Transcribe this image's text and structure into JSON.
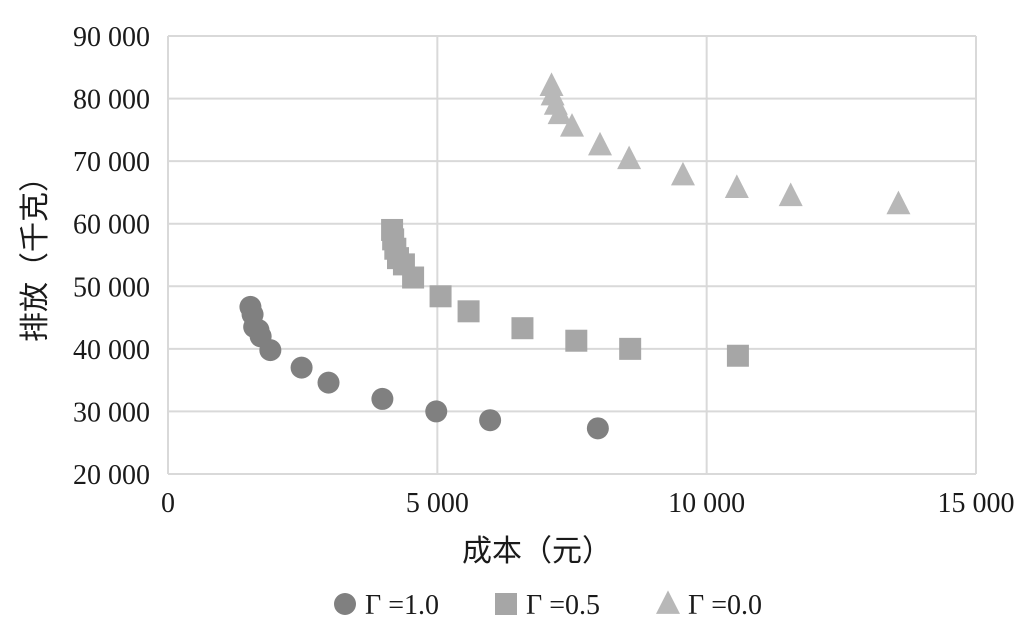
{
  "chart_data": {
    "type": "scatter",
    "title": "",
    "xlabel": "成本（元）",
    "ylabel": "排放（千克）",
    "xlim": [
      0,
      15000
    ],
    "ylim": [
      20000,
      90000
    ],
    "x_ticks": [
      0,
      5000,
      10000,
      15000
    ],
    "x_tick_labels": [
      "0",
      "5 000",
      "10 000",
      "15 000"
    ],
    "y_ticks": [
      20000,
      30000,
      40000,
      50000,
      60000,
      70000,
      80000,
      90000
    ],
    "y_tick_labels": [
      "20 000",
      "30 000",
      "40 000",
      "50 000",
      "60 000",
      "70 000",
      "80 000",
      "90 000"
    ],
    "grid": true,
    "legend_position": "bottom",
    "series": [
      {
        "name": "Γ =1.0",
        "marker": "circle",
        "color": "#808080",
        "points": [
          [
            1530,
            46700
          ],
          [
            1570,
            45500
          ],
          [
            1600,
            43500
          ],
          [
            1680,
            43000
          ],
          [
            1720,
            42000
          ],
          [
            1900,
            39800
          ],
          [
            2480,
            37000
          ],
          [
            2980,
            34600
          ],
          [
            3980,
            32000
          ],
          [
            4980,
            30000
          ],
          [
            5980,
            28600
          ],
          [
            7980,
            27300
          ]
        ]
      },
      {
        "name": "Γ =0.5",
        "marker": "square",
        "color": "#a6a6a6",
        "points": [
          [
            4160,
            59000
          ],
          [
            4180,
            57500
          ],
          [
            4220,
            56000
          ],
          [
            4270,
            54500
          ],
          [
            4380,
            53500
          ],
          [
            4550,
            51400
          ],
          [
            5060,
            48400
          ],
          [
            5580,
            46000
          ],
          [
            6580,
            43300
          ],
          [
            7580,
            41300
          ],
          [
            8580,
            40000
          ],
          [
            10580,
            38900
          ]
        ]
      },
      {
        "name": "Γ =0.0",
        "marker": "triangle",
        "color": "#b8b8b8",
        "points": [
          [
            7120,
            82000
          ],
          [
            7140,
            80500
          ],
          [
            7200,
            79000
          ],
          [
            7270,
            77500
          ],
          [
            7500,
            75500
          ],
          [
            8020,
            72500
          ],
          [
            8560,
            70300
          ],
          [
            9560,
            67700
          ],
          [
            10560,
            65700
          ],
          [
            11560,
            64400
          ],
          [
            13560,
            63100
          ]
        ]
      }
    ]
  }
}
